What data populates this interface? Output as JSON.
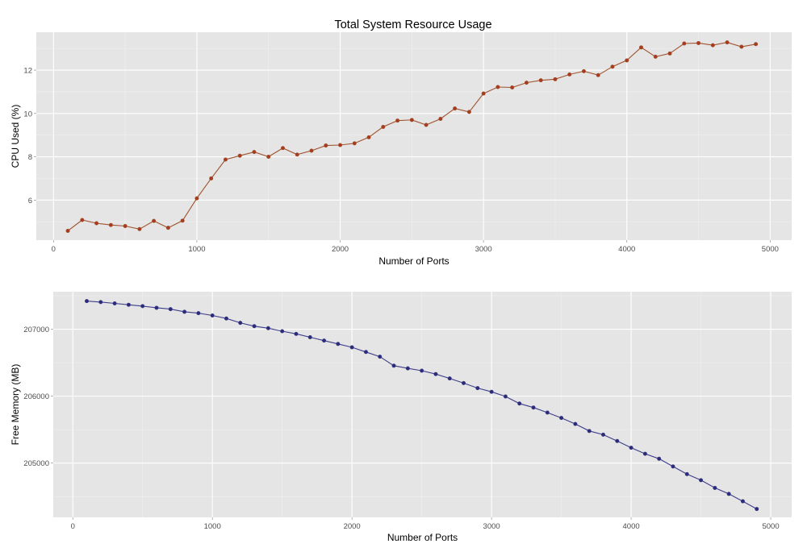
{
  "page_title": "Total System Resource Usage",
  "chart_data": [
    {
      "type": "line",
      "title": "Total System Resource Usage",
      "xlabel": "Number of Ports",
      "ylabel": "CPU Used (%)",
      "xlim": [
        -120,
        5150
      ],
      "ylim": [
        4.15,
        13.75
      ],
      "x_ticks": [
        0,
        1000,
        2000,
        3000,
        4000,
        5000
      ],
      "y_ticks": [
        6,
        8,
        10,
        12
      ],
      "grid": true,
      "colors": {
        "line": "#a0522d",
        "point": "#a83a1f",
        "panel": "#e5e5e5"
      },
      "series": [
        {
          "x": [
            100,
            200,
            300,
            400,
            500,
            600,
            700,
            800,
            900,
            1000,
            1100,
            1200,
            1300,
            1400,
            1500,
            1600,
            1700,
            1800,
            1900,
            2000,
            2100,
            2200,
            2300,
            2400,
            2500,
            2600,
            2700,
            2800,
            2900,
            3000,
            3100,
            3200,
            3300,
            3400,
            3500,
            3600,
            3700,
            3800,
            3900,
            4000,
            4100,
            4200,
            4300,
            4400,
            4500,
            4600,
            4700,
            4800,
            4900
          ],
          "values": [
            4.58,
            5.08,
            4.93,
            4.85,
            4.8,
            4.66,
            5.04,
            4.72,
            5.05,
            6.08,
            7.0,
            7.87,
            8.05,
            8.22,
            8.0,
            8.4,
            8.1,
            8.28,
            8.52,
            8.54,
            8.62,
            8.9,
            9.38,
            9.67,
            9.7,
            9.47,
            9.75,
            10.23,
            10.07,
            10.92,
            11.22,
            11.2,
            11.42,
            11.53,
            11.58,
            11.8,
            11.95,
            11.77,
            12.16,
            12.45,
            13.05,
            12.62,
            12.77,
            13.23,
            13.25,
            13.15,
            13.28,
            13.08,
            13.2
          ]
        }
      ]
    },
    {
      "type": "line",
      "title": "",
      "xlabel": "Number of Ports",
      "ylabel": "Free Memory (MB)",
      "xlim": [
        -140,
        5150
      ],
      "ylim": [
        204190,
        207560
      ],
      "x_ticks": [
        0,
        1000,
        2000,
        3000,
        4000,
        5000
      ],
      "y_ticks": [
        205000,
        206000,
        207000
      ],
      "grid": true,
      "colors": {
        "line": "#3d3d8a",
        "point": "#2b2b7a",
        "panel": "#e5e5e5"
      },
      "series": [
        {
          "x": [
            100,
            200,
            300,
            400,
            500,
            600,
            700,
            800,
            900,
            1000,
            1100,
            1200,
            1300,
            1400,
            1500,
            1600,
            1700,
            1800,
            1900,
            2000,
            2100,
            2200,
            2300,
            2400,
            2500,
            2600,
            2700,
            2800,
            2900,
            3000,
            3100,
            3200,
            3300,
            3400,
            3500,
            3600,
            3700,
            3800,
            3900,
            4000,
            4100,
            4200,
            4300,
            4400,
            4500,
            4600,
            4700,
            4800,
            4900
          ],
          "values": [
            207420,
            207405,
            207385,
            207365,
            207345,
            207320,
            207300,
            207260,
            207240,
            207205,
            207160,
            207095,
            207045,
            207015,
            206970,
            206930,
            206880,
            206830,
            206780,
            206730,
            206660,
            206590,
            206455,
            206415,
            206380,
            206330,
            206265,
            206195,
            206120,
            206065,
            205995,
            205890,
            205830,
            205755,
            205675,
            205585,
            205480,
            205425,
            205330,
            205230,
            205140,
            205065,
            204950,
            204835,
            204745,
            204630,
            204540,
            204430,
            204315
          ]
        }
      ]
    }
  ]
}
